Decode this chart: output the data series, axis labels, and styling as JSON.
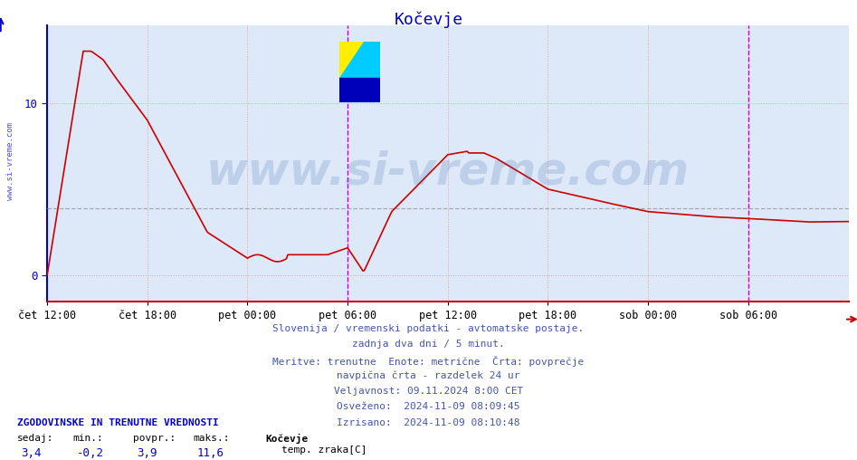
{
  "title": "Kočevje",
  "title_color": "#0000cc",
  "bg_color": "#ffffff",
  "plot_bg_color": "#dde8f8",
  "grid_color": "#ff9999",
  "x_tick_labels": [
    "čet 12:00",
    "čet 18:00",
    "pet 00:00",
    "pet 06:00",
    "pet 12:00",
    "pet 18:00",
    "sob 00:00",
    "sob 06:00"
  ],
  "x_tick_positions": [
    0.0,
    0.125,
    0.25,
    0.375,
    0.5,
    0.625,
    0.75,
    0.875
  ],
  "y_ticks": [
    0,
    10
  ],
  "y_min": -1.5,
  "y_max": 14.5,
  "avg_line_y": 3.9,
  "avg_line_color": "#aaaaaa",
  "vertical_line_x": 0.375,
  "vertical_line_color": "#cc00cc",
  "vertical_line_x2": 0.875,
  "vertical_line_color2": "#cc00cc",
  "left_axis_color": "#0000cc",
  "bottom_axis_color": "#cc0000",
  "left_label": "www.si-vreme.com",
  "info_lines": [
    "Slovenija / vremenski podatki - avtomatske postaje.",
    "zadnja dva dni / 5 minut.",
    "Meritve: trenutne  Enote: metrične  Črta: povprečje",
    "navpična črta - razdelek 24 ur",
    "Veljavnost: 09.11.2024 8:00 CET",
    "Osveženo:  2024-11-09 08:09:45",
    "Izrisano:  2024-11-09 08:10:48"
  ],
  "info_color": "#4455aa",
  "legend_title": "ZGODOVINSKE IN TRENUTNE VREDNOSTI",
  "legend_headers": [
    "sedaj:",
    "min.:",
    "povpr.:",
    "maks.:"
  ],
  "legend_values": [
    "3,4",
    "-0,2",
    "3,9",
    "11,6"
  ],
  "legend_series_name": "Kočevje",
  "legend_series_label": "temp. zraka[C]",
  "legend_series_color": "#cc0000",
  "line_color": "#cc0000",
  "line_width": 1.2,
  "logo_yellow": "#ffee00",
  "logo_cyan": "#00ccff",
  "logo_blue": "#0000bb",
  "watermark_text": "www.si-vreme.com",
  "watermark_color": "#3366aa",
  "watermark_alpha": 0.18
}
